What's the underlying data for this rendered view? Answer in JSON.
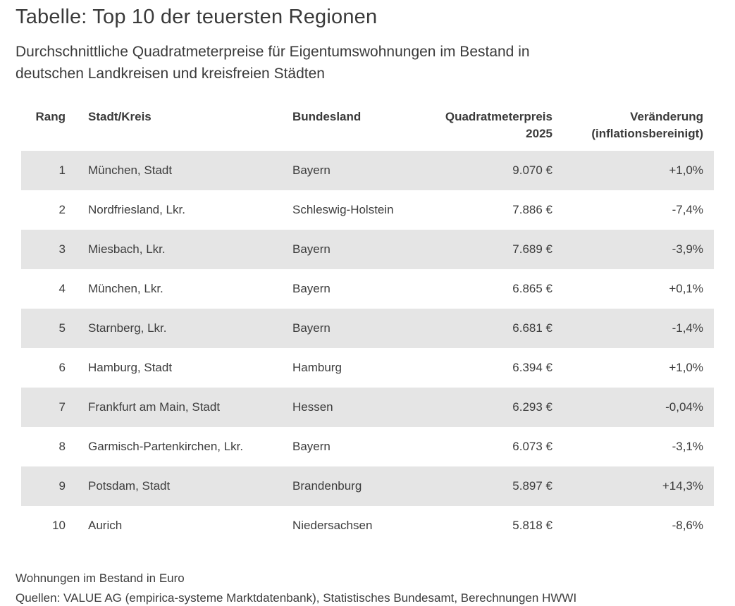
{
  "page": {
    "title": "Tabelle: Top 10 der teuersten Regionen",
    "subtitle_lines": [
      "Durchschnittliche Quadratmeterpreise für Eigentumswohnungen im Bestand in",
      "deutschen Landkreisen und kreisfreien Städten"
    ]
  },
  "table": {
    "columns": [
      {
        "label": "Rang",
        "label2": ""
      },
      {
        "label": "Stadt/Kreis",
        "label2": ""
      },
      {
        "label": "Bundesland",
        "label2": ""
      },
      {
        "label": "Quadratmeterpreis",
        "label2": "2025"
      },
      {
        "label": "Veränderung",
        "label2": "(inflationsbereinigt)"
      }
    ],
    "rows": [
      [
        "1",
        "München, Stadt",
        "Bayern",
        "9.070 €",
        "+1,0%"
      ],
      [
        "2",
        "Nordfriesland, Lkr.",
        "Schleswig-Holstein",
        "7.886 €",
        "-7,4%"
      ],
      [
        "3",
        "Miesbach, Lkr.",
        "Bayern",
        "7.689 €",
        "-3,9%"
      ],
      [
        "4",
        "München, Lkr.",
        "Bayern",
        "6.865 €",
        "+0,1%"
      ],
      [
        "5",
        "Starnberg, Lkr.",
        "Bayern",
        "6.681 €",
        "-1,4%"
      ],
      [
        "6",
        "Hamburg, Stadt",
        "Hamburg",
        "6.394 €",
        "+1,0%"
      ],
      [
        "7",
        "Frankfurt am Main, Stadt",
        "Hessen",
        "6.293 €",
        "-0,04%"
      ],
      [
        "8",
        "Garmisch-Partenkirchen, Lkr.",
        "Bayern",
        "6.073 €",
        "-3,1%"
      ],
      [
        "9",
        "Potsdam, Stadt",
        "Brandenburg",
        "5.897 €",
        "+14,3%"
      ],
      [
        "10",
        "Aurich",
        "Niedersachsen",
        "5.818 €",
        "-8,6%"
      ]
    ]
  },
  "footnotes": [
    "Wohnungen im Bestand in Euro",
    "Quellen: VALUE AG (empirica-systeme Marktdatenbank), Statistisches Bundesamt, Berechnungen HWWI"
  ],
  "colors": {
    "background": "#ffffff",
    "text": "#3d3d3d",
    "stripe": "#e5e5e5"
  },
  "chart_data": {
    "type": "table",
    "title": "Tabelle: Top 10 der teuersten Regionen",
    "subtitle": "Durchschnittliche Quadratmeterpreise für Eigentumswohnungen im Bestand in deutschen Landkreisen und kreisfreien Städten",
    "columns": [
      "Rang",
      "Stadt/Kreis",
      "Bundesland",
      "Quadratmeterpreis 2025",
      "Veränderung (inflationsbereinigt)"
    ],
    "rows": [
      [
        1,
        "München, Stadt",
        "Bayern",
        "9.070 €",
        "+1,0%"
      ],
      [
        2,
        "Nordfriesland, Lkr.",
        "Schleswig-Holstein",
        "7.886 €",
        "-7,4%"
      ],
      [
        3,
        "Miesbach, Lkr.",
        "Bayern",
        "7.689 €",
        "-3,9%"
      ],
      [
        4,
        "München, Lkr.",
        "Bayern",
        "6.865 €",
        "+0,1%"
      ],
      [
        5,
        "Starnberg, Lkr.",
        "Bayern",
        "6.681 €",
        "-1,4%"
      ],
      [
        6,
        "Hamburg, Stadt",
        "Hamburg",
        "6.394 €",
        "+1,0%"
      ],
      [
        7,
        "Frankfurt am Main, Stadt",
        "Hessen",
        "6.293 €",
        "-0,04%"
      ],
      [
        8,
        "Garmisch-Partenkirchen, Lkr.",
        "Bayern",
        "6.073 €",
        "-3,1%"
      ],
      [
        9,
        "Potsdam, Stadt",
        "Brandenburg",
        "5.897 €",
        "+14,3%"
      ],
      [
        10,
        "Aurich",
        "Niedersachsen",
        "5.818 €",
        "-8,6%"
      ]
    ],
    "prices_eur_per_sqm": [
      9070,
      7886,
      7689,
      6865,
      6681,
      6394,
      6293,
      6073,
      5897,
      5818
    ],
    "change_percent": [
      1.0,
      -7.4,
      -3.9,
      0.1,
      -1.4,
      1.0,
      -0.04,
      -3.1,
      14.3,
      -8.6
    ],
    "footnotes": [
      "Wohnungen im Bestand in Euro",
      "Quellen: VALUE AG (empirica-systeme Marktdatenbank), Statistisches Bundesamt, Berechnungen HWWI"
    ],
    "layout": {
      "zebra_striping": "odd rows #e5e5e5",
      "grid": false,
      "legend": "none"
    }
  }
}
